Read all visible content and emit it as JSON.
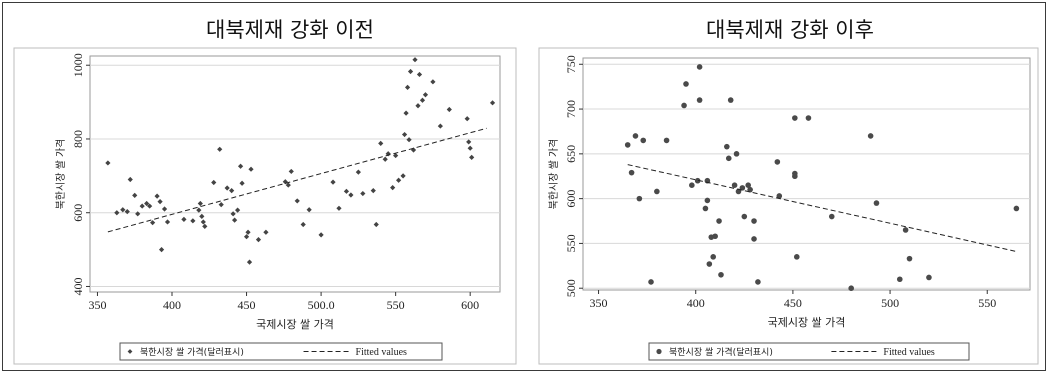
{
  "chart_data": [
    {
      "type": "scatter",
      "title": "대북제재 강화 이전",
      "xlabel": "국제시장 쌀 가격",
      "ylabel": "북한시장 쌀 가격",
      "xlim": [
        345,
        620
      ],
      "ylim": [
        385,
        1025
      ],
      "xticks": [
        350,
        400,
        450,
        500,
        550,
        600
      ],
      "xtick_labels": [
        "350",
        "400",
        "450",
        "500.0",
        "550",
        "600"
      ],
      "yticks": [
        400,
        600,
        800,
        1000
      ],
      "ytick_labels": [
        "400",
        "600",
        "800",
        "1000"
      ],
      "marker": "diamond",
      "grid": "horizontal",
      "legend": {
        "position": "bottom",
        "entries": [
          "북한시장 쌀 가격(달러표시)",
          "Fitted values"
        ]
      },
      "series": [
        {
          "name": "북한시장 쌀 가격(달러표시)",
          "points": [
            [
              357,
              735
            ],
            [
              363,
              600
            ],
            [
              367,
              608
            ],
            [
              370,
              603
            ],
            [
              372,
              690
            ],
            [
              375,
              647
            ],
            [
              377,
              597
            ],
            [
              380,
              618
            ],
            [
              383,
              625
            ],
            [
              385,
              618
            ],
            [
              387,
              573
            ],
            [
              390,
              645
            ],
            [
              392,
              630
            ],
            [
              393,
              500
            ],
            [
              395,
              610
            ],
            [
              397,
              575
            ],
            [
              408,
              582
            ],
            [
              414,
              578
            ],
            [
              418,
              607
            ],
            [
              419,
              625
            ],
            [
              420,
              590
            ],
            [
              421,
              575
            ],
            [
              422,
              563
            ],
            [
              428,
              682
            ],
            [
              432,
              772
            ],
            [
              433,
              622
            ],
            [
              437,
              667
            ],
            [
              440,
              660
            ],
            [
              441,
              597
            ],
            [
              442,
              580
            ],
            [
              444,
              607
            ],
            [
              446,
              726
            ],
            [
              447,
              680
            ],
            [
              450,
              535
            ],
            [
              451,
              547
            ],
            [
              452,
              466
            ],
            [
              453,
              718
            ],
            [
              458,
              527
            ],
            [
              463,
              547
            ],
            [
              476,
              684
            ],
            [
              478,
              675
            ],
            [
              480,
              712
            ],
            [
              484,
              632
            ],
            [
              488,
              568
            ],
            [
              492,
              608
            ],
            [
              500,
              540
            ],
            [
              508,
              683
            ],
            [
              512,
              612
            ],
            [
              517,
              658
            ],
            [
              520,
              648
            ],
            [
              525,
              710
            ],
            [
              528,
              652
            ],
            [
              535,
              660
            ],
            [
              537,
              568
            ],
            [
              540,
              788
            ],
            [
              543,
              745
            ],
            [
              545,
              760
            ],
            [
              548,
              668
            ],
            [
              550,
              755
            ],
            [
              552,
              688
            ],
            [
              555,
              700
            ],
            [
              556,
              812
            ],
            [
              557,
              870
            ],
            [
              558,
              940
            ],
            [
              559,
              798
            ],
            [
              560,
              983
            ],
            [
              562,
              770
            ],
            [
              563,
              1015
            ],
            [
              565,
              890
            ],
            [
              566,
              975
            ],
            [
              568,
              905
            ],
            [
              570,
              920
            ],
            [
              575,
              955
            ],
            [
              580,
              835
            ],
            [
              586,
              880
            ],
            [
              598,
              855
            ],
            [
              599,
              792
            ],
            [
              600,
              775
            ],
            [
              601,
              750
            ],
            [
              615,
              898
            ]
          ]
        },
        {
          "name": "Fitted values",
          "line": [
            [
              357,
              548
            ],
            [
              611,
              829
            ]
          ]
        }
      ]
    },
    {
      "type": "scatter",
      "title": "대북제재 강화 이후",
      "xlabel": "국제시장 쌀 가격",
      "ylabel": "북한시장 쌀 가격",
      "xlim": [
        342,
        572
      ],
      "ylim": [
        498,
        757
      ],
      "xticks": [
        350,
        400,
        450,
        500,
        550
      ],
      "xtick_labels": [
        "350",
        "400",
        "450",
        "500",
        "550"
      ],
      "yticks": [
        500,
        550,
        600,
        650,
        700,
        750
      ],
      "ytick_labels": [
        "500",
        "550",
        "600",
        "650",
        "700",
        "750"
      ],
      "marker": "circle",
      "grid": "horizontal",
      "legend": {
        "position": "bottom",
        "entries": [
          "북한시장 쌀 가격(달러표시)",
          "Fitted values"
        ]
      },
      "series": [
        {
          "name": "북한시장 쌀 가격(달러표시)",
          "points": [
            [
              365,
              660
            ],
            [
              367,
              629
            ],
            [
              369,
              670
            ],
            [
              371,
              600
            ],
            [
              373,
              665
            ],
            [
              377,
              507
            ],
            [
              380,
              608
            ],
            [
              385,
              665
            ],
            [
              394,
              704
            ],
            [
              395,
              728
            ],
            [
              398,
              615
            ],
            [
              401,
              620
            ],
            [
              402,
              747
            ],
            [
              402,
              710
            ],
            [
              405,
              589
            ],
            [
              406,
              598
            ],
            [
              406,
              620
            ],
            [
              407,
              527
            ],
            [
              408,
              557
            ],
            [
              409,
              535
            ],
            [
              410,
              558
            ],
            [
              412,
              575
            ],
            [
              413,
              515
            ],
            [
              416,
              658
            ],
            [
              417,
              645
            ],
            [
              418,
              710
            ],
            [
              420,
              615
            ],
            [
              421,
              650
            ],
            [
              422,
              608
            ],
            [
              424,
              612
            ],
            [
              425,
              580
            ],
            [
              427,
              615
            ],
            [
              428,
              610
            ],
            [
              430,
              575
            ],
            [
              430,
              555
            ],
            [
              432,
              507
            ],
            [
              442,
              641
            ],
            [
              443,
              603
            ],
            [
              451,
              690
            ],
            [
              451,
              628
            ],
            [
              451,
              625
            ],
            [
              452,
              535
            ],
            [
              458,
              690
            ],
            [
              470,
              580
            ],
            [
              490,
              670
            ],
            [
              493,
              595
            ],
            [
              505,
              510
            ],
            [
              508,
              565
            ],
            [
              510,
              533
            ],
            [
              520,
              512
            ],
            [
              565,
              589
            ],
            [
              480,
              500
            ]
          ]
        },
        {
          "name": "Fitted values",
          "line": [
            [
              365,
              638
            ],
            [
              565,
              541
            ]
          ]
        }
      ]
    }
  ]
}
